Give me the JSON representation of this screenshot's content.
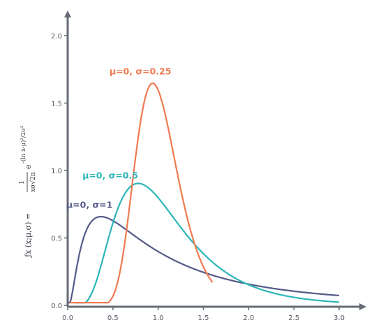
{
  "chart_data": {
    "type": "line",
    "title": "",
    "xlabel": "",
    "ylabel": {
      "lhs": "ƒx (x;μ,σ) =",
      "numerator": "1",
      "denominator": "xσ√2π",
      "base": "e",
      "exponent": "-(ln x-μ)²/2σ²"
    },
    "xlim": [
      0,
      3.0
    ],
    "ylim": [
      0,
      2.0
    ],
    "x_ticks": [
      "0.0",
      "0.5",
      "1.0",
      "1.5",
      "2.0",
      "2.5",
      "3.0"
    ],
    "y_ticks": [
      "0.0",
      "0.5",
      "1.0",
      "1.5",
      "2.0"
    ],
    "grid": false,
    "series": [
      {
        "name": "μ=0, σ=1",
        "mu": 0,
        "sigma": 1,
        "color": "#545a87",
        "peak": [
          0.37,
          0.66
        ],
        "x_range": [
          0,
          3.0
        ]
      },
      {
        "name": "μ=0, σ=0.5",
        "mu": 0,
        "sigma": 0.5,
        "color": "#2bb6b8",
        "peak": [
          0.78,
          0.91
        ],
        "x_range": [
          0.08,
          3.0
        ]
      },
      {
        "name": "μ=0, σ=0.25",
        "mu": 0,
        "sigma": 0.25,
        "color": "#f07a50",
        "peak": [
          0.94,
          1.64
        ],
        "x_range": [
          0.02,
          1.6
        ]
      }
    ]
  }
}
